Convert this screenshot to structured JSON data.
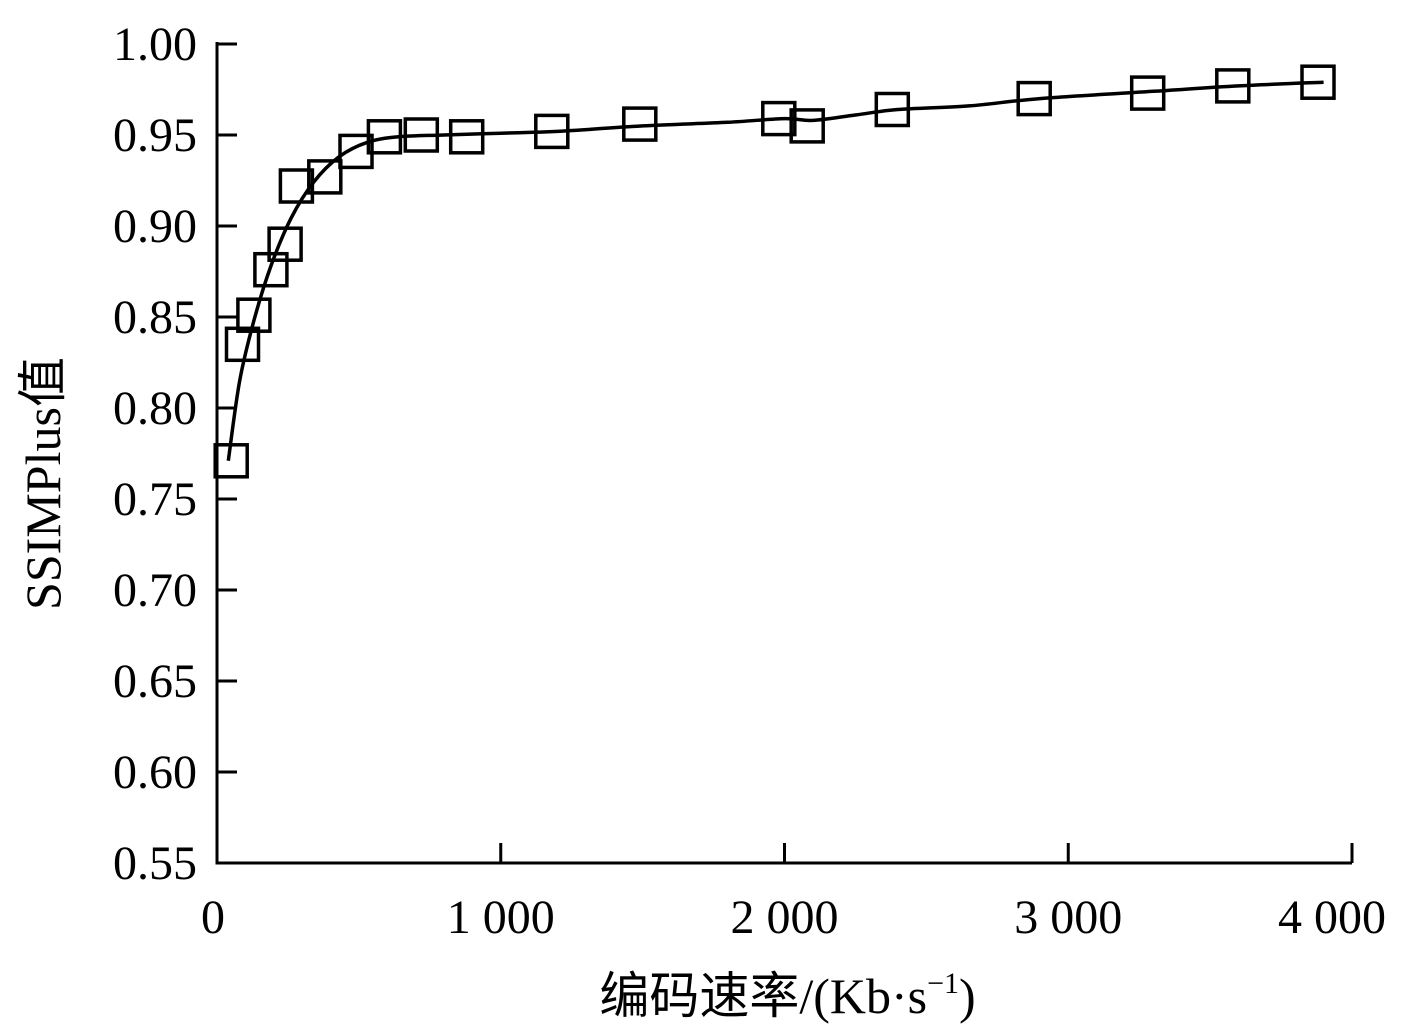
{
  "chart_data": {
    "type": "scatter",
    "xlabel": "编码速率/(Kb·s",
    "xlabel_sup": "−1",
    "xlabel_close": ")",
    "ylabel": "SSIMPlus值",
    "xlim": [
      0,
      4000
    ],
    "ylim": [
      0.55,
      1.0
    ],
    "x_ticks": [
      0,
      1000,
      2000,
      3000,
      4000
    ],
    "x_tick_labels": [
      "0",
      "1 000",
      "2 000",
      "3 000",
      "4 000"
    ],
    "y_ticks": [
      0.55,
      0.6,
      0.65,
      0.7,
      0.75,
      0.8,
      0.85,
      0.9,
      0.95,
      1.0
    ],
    "y_tick_labels": [
      "0.55",
      "0.60",
      "0.65",
      "0.70",
      "0.75",
      "0.80",
      "0.85",
      "0.90",
      "0.95",
      "1.00"
    ],
    "grid": false,
    "legend": "none",
    "marker": "open-square",
    "series": [
      {
        "points": [
          {
            "x": 50,
            "y": 0.771
          },
          {
            "x": 90,
            "y": 0.835
          },
          {
            "x": 130,
            "y": 0.851
          },
          {
            "x": 190,
            "y": 0.876
          },
          {
            "x": 240,
            "y": 0.89
          },
          {
            "x": 280,
            "y": 0.922
          },
          {
            "x": 380,
            "y": 0.927
          },
          {
            "x": 490,
            "y": 0.941
          },
          {
            "x": 590,
            "y": 0.949
          },
          {
            "x": 720,
            "y": 0.95
          },
          {
            "x": 880,
            "y": 0.949
          },
          {
            "x": 1180,
            "y": 0.952
          },
          {
            "x": 1490,
            "y": 0.956
          },
          {
            "x": 1980,
            "y": 0.959
          },
          {
            "x": 2080,
            "y": 0.955
          },
          {
            "x": 2380,
            "y": 0.964
          },
          {
            "x": 2880,
            "y": 0.97
          },
          {
            "x": 3280,
            "y": 0.973
          },
          {
            "x": 3580,
            "y": 0.977
          },
          {
            "x": 3880,
            "y": 0.979
          }
        ],
        "fit_curve": [
          {
            "x": 40,
            "y": 0.771
          },
          {
            "x": 80,
            "y": 0.815
          },
          {
            "x": 130,
            "y": 0.848
          },
          {
            "x": 190,
            "y": 0.878
          },
          {
            "x": 260,
            "y": 0.904
          },
          {
            "x": 340,
            "y": 0.924
          },
          {
            "x": 430,
            "y": 0.938
          },
          {
            "x": 530,
            "y": 0.946
          },
          {
            "x": 640,
            "y": 0.949
          },
          {
            "x": 800,
            "y": 0.95
          },
          {
            "x": 1000,
            "y": 0.951
          },
          {
            "x": 1200,
            "y": 0.952
          },
          {
            "x": 1500,
            "y": 0.955
          },
          {
            "x": 1800,
            "y": 0.957
          },
          {
            "x": 2000,
            "y": 0.959
          },
          {
            "x": 2100,
            "y": 0.958
          },
          {
            "x": 2250,
            "y": 0.961
          },
          {
            "x": 2400,
            "y": 0.964
          },
          {
            "x": 2650,
            "y": 0.966
          },
          {
            "x": 2900,
            "y": 0.97
          },
          {
            "x": 3300,
            "y": 0.974
          },
          {
            "x": 3600,
            "y": 0.977
          },
          {
            "x": 3900,
            "y": 0.979
          }
        ]
      }
    ]
  }
}
